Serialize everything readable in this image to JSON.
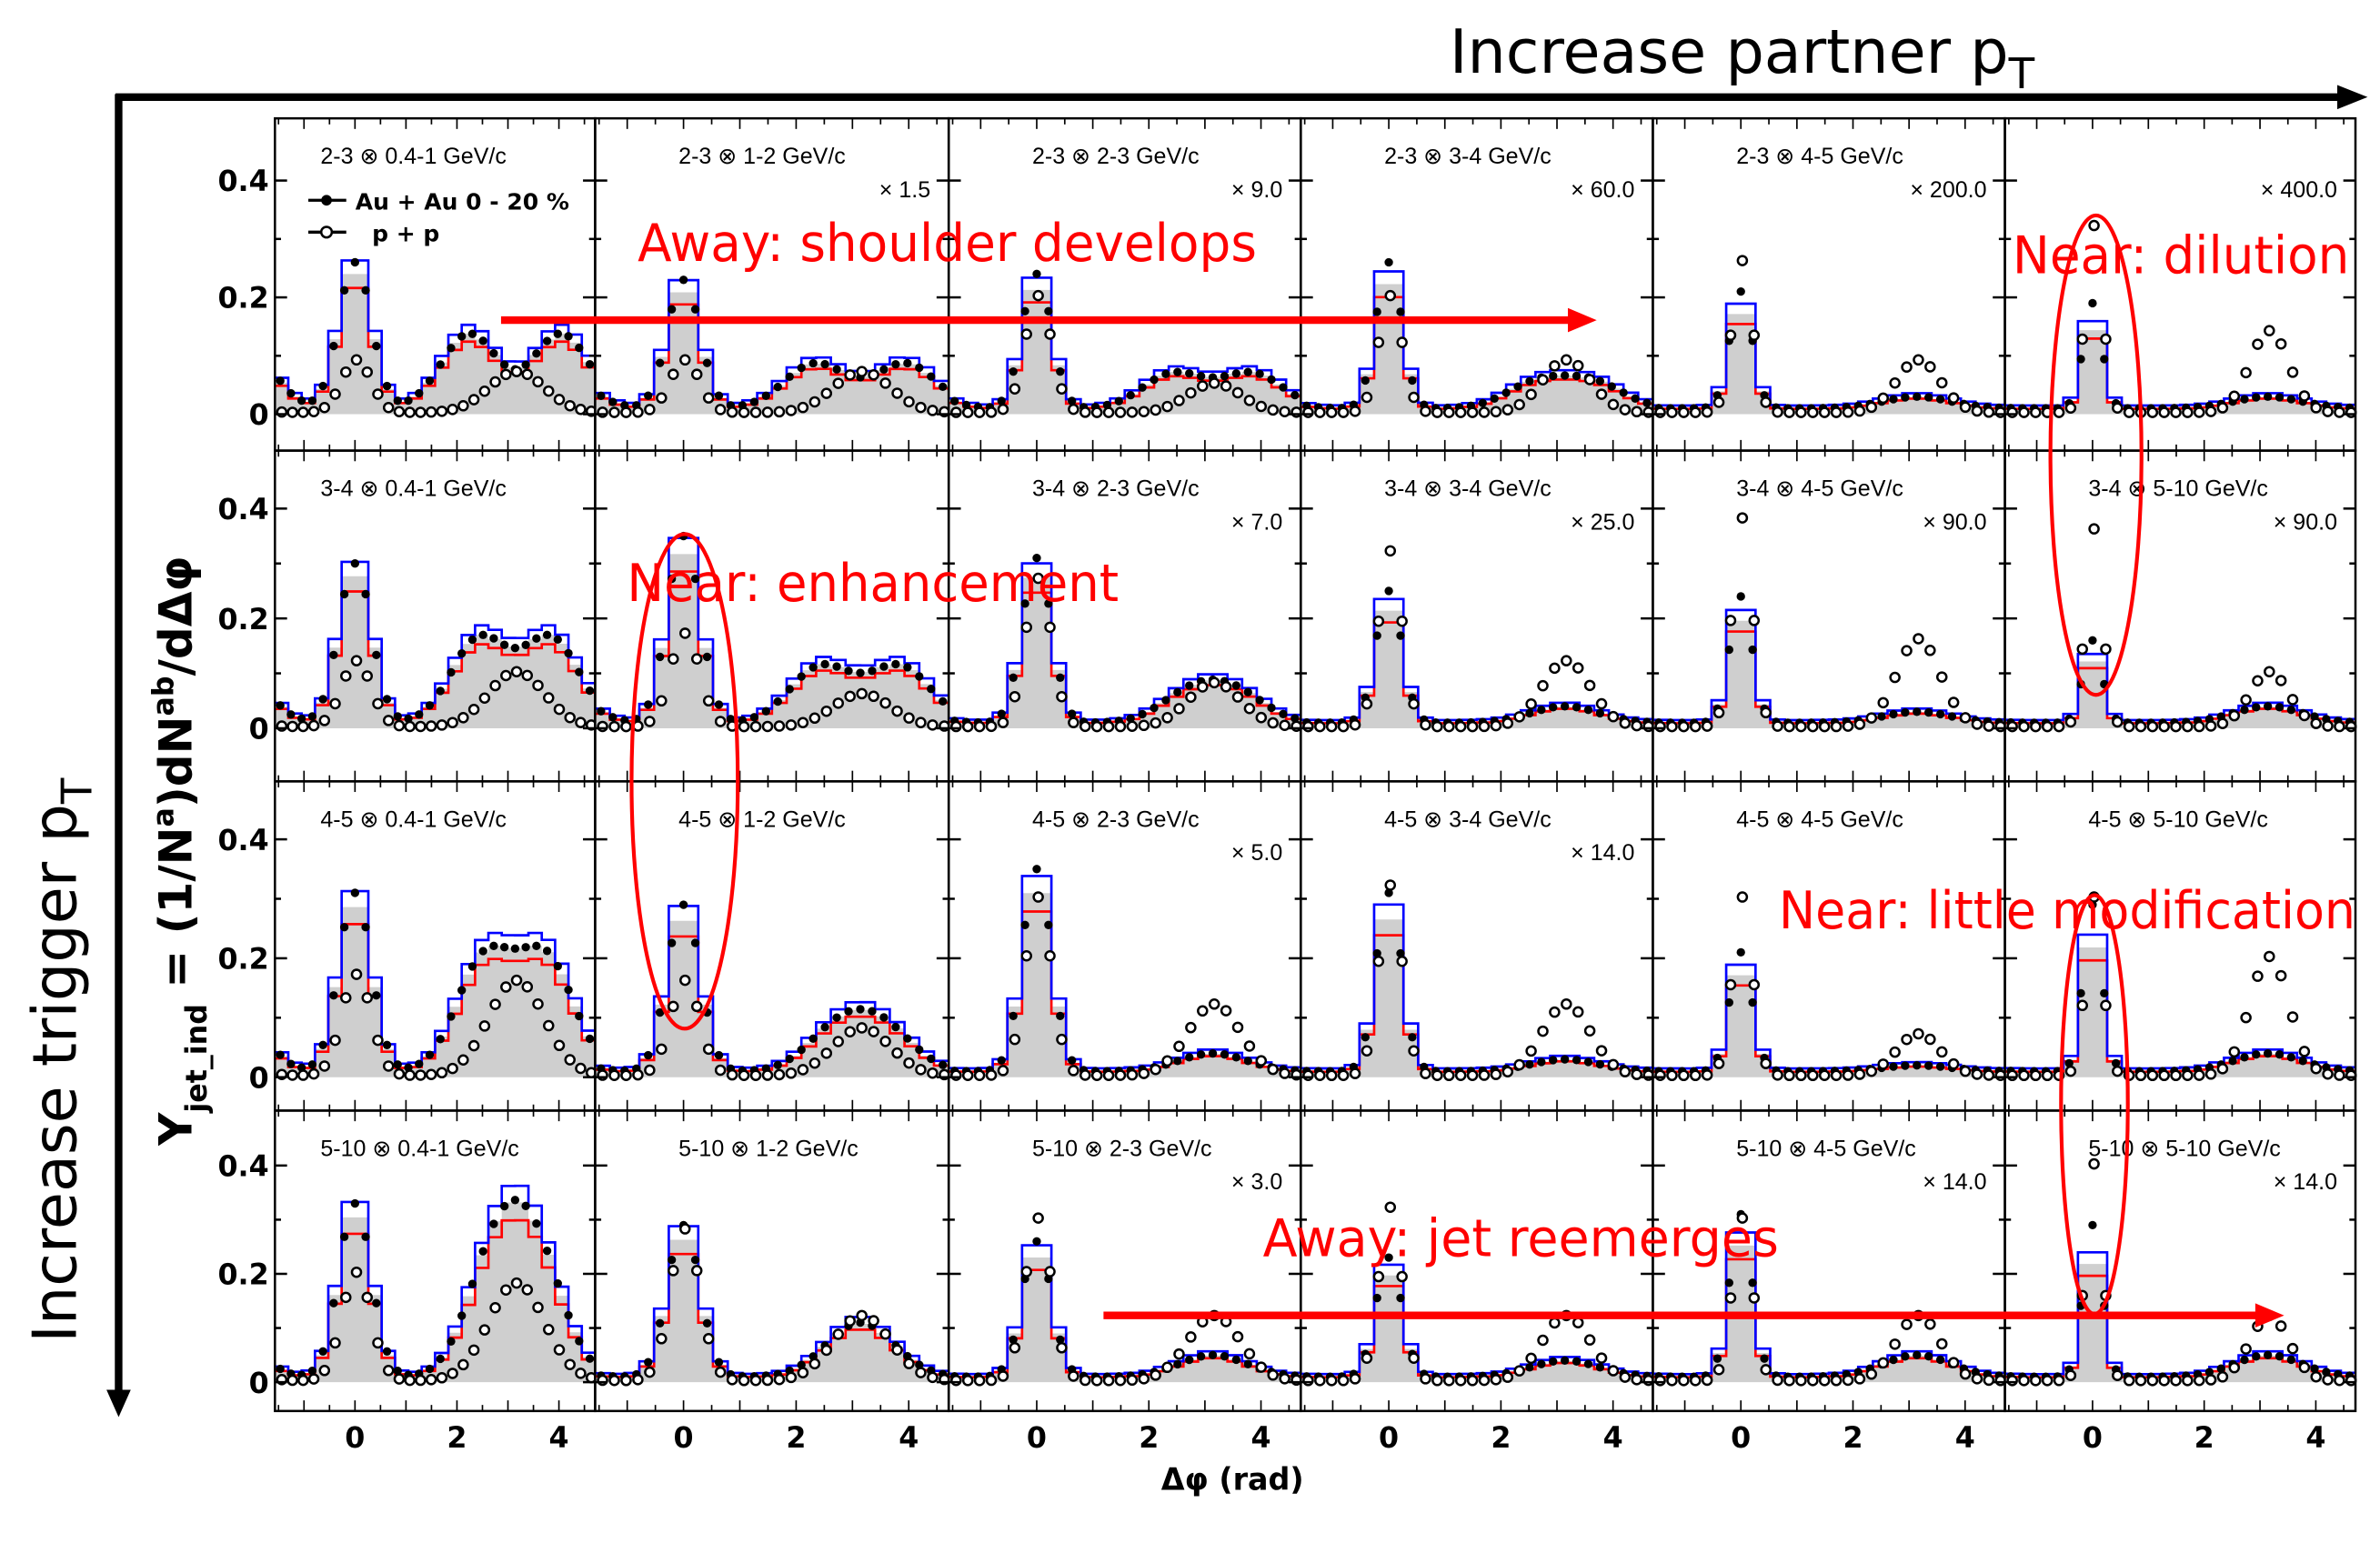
{
  "chart_data": {
    "type": "line",
    "title": "",
    "xlabel": "Δφ (rad)",
    "ylabel_main": "Y",
    "ylabel_sub": "jet_ind",
    "ylabel_rest": " = (1/N",
    "ylabel_sup1": "a",
    "ylabel_mid": ")dN",
    "ylabel_sup2": "ab",
    "ylabel_end": "/dΔφ",
    "xlim": [
      -1.57,
      4.71
    ],
    "ylim": [
      0,
      0.48
    ],
    "xticks": [
      "0",
      "2",
      "4"
    ],
    "yticks": [
      "0",
      "0.2",
      "0.4"
    ],
    "legend": {
      "placement": "top-left",
      "auau": "Au + Au 0 - 20 %",
      "pp": "p + p"
    },
    "colors": {
      "auau_upper": "#0000ff",
      "auau_lower": "#ff0000",
      "band": "#cfcfcf",
      "annotation": "#ff0000"
    },
    "top_label": "Increase partner p",
    "top_label_sub": "T",
    "side_label": "Increase trigger p",
    "side_label_sub": "T",
    "annotations": {
      "near_dilution": "Near: dilution",
      "away_shoulder": "Away: shoulder develops",
      "near_enhancement": "Near: enhancement",
      "near_little": "Near: little modification",
      "away_jet": "Away: jet reemerges"
    },
    "panels": [
      [
        {
          "label": "2-3 ⊗ 0.4-1 GeV/c",
          "scale": "",
          "auau_near": 0.25,
          "auau_away": 0.15,
          "away_split": 0.9,
          "pp_near": 0.09,
          "pp_away": 0.07
        },
        {
          "label": "2-3 ⊗ 1-2 GeV/c",
          "scale": "× 1.5",
          "auau_near": 0.22,
          "auau_away": 0.09,
          "away_split": 0.8,
          "pp_near": 0.09,
          "pp_away": 0.07
        },
        {
          "label": "2-3 ⊗ 2-3 GeV/c",
          "scale": "× 9.0",
          "auau_near": 0.23,
          "auau_away": 0.07,
          "away_split": 0.7,
          "pp_near": 0.2,
          "pp_away": 0.05
        },
        {
          "label": "2-3 ⊗ 3-4 GeV/c",
          "scale": "× 60.0",
          "auau_near": 0.25,
          "auau_away": 0.05,
          "away_split": 0.5,
          "pp_near": 0.2,
          "pp_away": 0.09
        },
        {
          "label": "2-3 ⊗ 4-5 GeV/c",
          "scale": "× 200.0",
          "auau_near": 0.2,
          "auau_away": 0.02,
          "away_split": 0,
          "pp_near": 0.26,
          "pp_away": 0.09
        },
        {
          "label": "",
          "scale": "× 400.0",
          "auau_near": 0.18,
          "auau_away": 0.02,
          "away_split": 0,
          "pp_near": 0.32,
          "pp_away": 0.14
        }
      ],
      [
        {
          "label": "3-4 ⊗ 0.4-1 GeV/c",
          "scale": "",
          "auau_near": 0.29,
          "auau_away": 0.18,
          "away_split": 0.7,
          "pp_near": 0.12,
          "pp_away": 0.1
        },
        {
          "label": "",
          "scale": "",
          "auau_near": 0.34,
          "auau_away": 0.12,
          "away_split": 0.7,
          "pp_near": 0.17,
          "pp_away": 0.06
        },
        {
          "label": "3-4 ⊗ 2-3 GeV/c",
          "scale": "× 7.0",
          "auau_near": 0.3,
          "auau_away": 0.06,
          "away_split": 0.4,
          "pp_near": 0.27,
          "pp_away": 0.08
        },
        {
          "label": "3-4 ⊗ 3-4 GeV/c",
          "scale": "× 25.0",
          "auau_near": 0.24,
          "auau_away": 0.03,
          "away_split": 0,
          "pp_near": 0.32,
          "pp_away": 0.12
        },
        {
          "label": "3-4 ⊗ 4-5 GeV/c",
          "scale": "× 90.0",
          "auau_near": 0.23,
          "auau_away": 0.02,
          "away_split": 0,
          "pp_near": 0.38,
          "pp_away": 0.16
        },
        {
          "label": "3-4 ⊗ 5-10 GeV/c",
          "scale": "× 90.0",
          "auau_near": 0.15,
          "auau_away": 0.03,
          "away_split": 0,
          "pp_near": 0.36,
          "pp_away": 0.1
        }
      ],
      [
        {
          "label": "4-5 ⊗ 0.4-1 GeV/c",
          "scale": "",
          "auau_near": 0.3,
          "auau_away": 0.22,
          "away_split": 0.6,
          "pp_near": 0.17,
          "pp_away": 0.16
        },
        {
          "label": "4-5 ⊗ 1-2 GeV/c",
          "scale": "",
          "auau_near": 0.28,
          "auau_away": 0.08,
          "away_split": 0.4,
          "pp_near": 0.16,
          "pp_away": 0.08
        },
        {
          "label": "4-5 ⊗ 2-3 GeV/c",
          "scale": "× 5.0",
          "auau_near": 0.34,
          "auau_away": 0.03,
          "away_split": 0,
          "pp_near": 0.3,
          "pp_away": 0.12
        },
        {
          "label": "4-5 ⊗ 3-4 GeV/c",
          "scale": "× 14.0",
          "auau_near": 0.3,
          "auau_away": 0.02,
          "away_split": 0,
          "pp_near": 0.32,
          "pp_away": 0.12
        },
        {
          "label": "4-5 ⊗ 4-5 GeV/c",
          "scale": "",
          "auau_near": 0.2,
          "auau_away": 0.01,
          "away_split": 0,
          "pp_near": 0.3,
          "pp_away": 0.07
        },
        {
          "label": "4-5 ⊗ 5-10 GeV/c",
          "scale": "",
          "auau_near": 0.28,
          "auau_away": 0.03,
          "away_split": 0,
          "pp_near": 0.3,
          "pp_away": 0.2
        }
      ],
      [
        {
          "label": "5-10 ⊗ 0.4-1 GeV/c",
          "scale": "",
          "auau_near": 0.32,
          "auau_away": 0.25,
          "away_split": 0.4,
          "pp_near": 0.2,
          "pp_away": 0.18
        },
        {
          "label": "5-10 ⊗ 1-2 GeV/c",
          "scale": "",
          "auau_near": 0.28,
          "auau_away": 0.1,
          "away_split": 0,
          "pp_near": 0.28,
          "pp_away": 0.12
        },
        {
          "label": "5-10 ⊗ 2-3 GeV/c",
          "scale": "× 3.0",
          "auau_near": 0.25,
          "auau_away": 0.04,
          "away_split": 0,
          "pp_near": 0.3,
          "pp_away": 0.12
        },
        {
          "label": "",
          "scale": "",
          "auau_near": 0.22,
          "auau_away": 0.03,
          "away_split": 0,
          "pp_near": 0.32,
          "pp_away": 0.12
        },
        {
          "label": "5-10 ⊗ 4-5 GeV/c",
          "scale": "× 14.0",
          "auau_near": 0.3,
          "auau_away": 0.04,
          "away_split": 0,
          "pp_near": 0.3,
          "pp_away": 0.12
        },
        {
          "label": "5-10 ⊗ 5-10 GeV/c",
          "scale": "× 14.0",
          "auau_near": 0.28,
          "auau_away": 0.04,
          "away_split": 0,
          "pp_near": 0.4,
          "pp_away": 0.12
        }
      ]
    ]
  }
}
